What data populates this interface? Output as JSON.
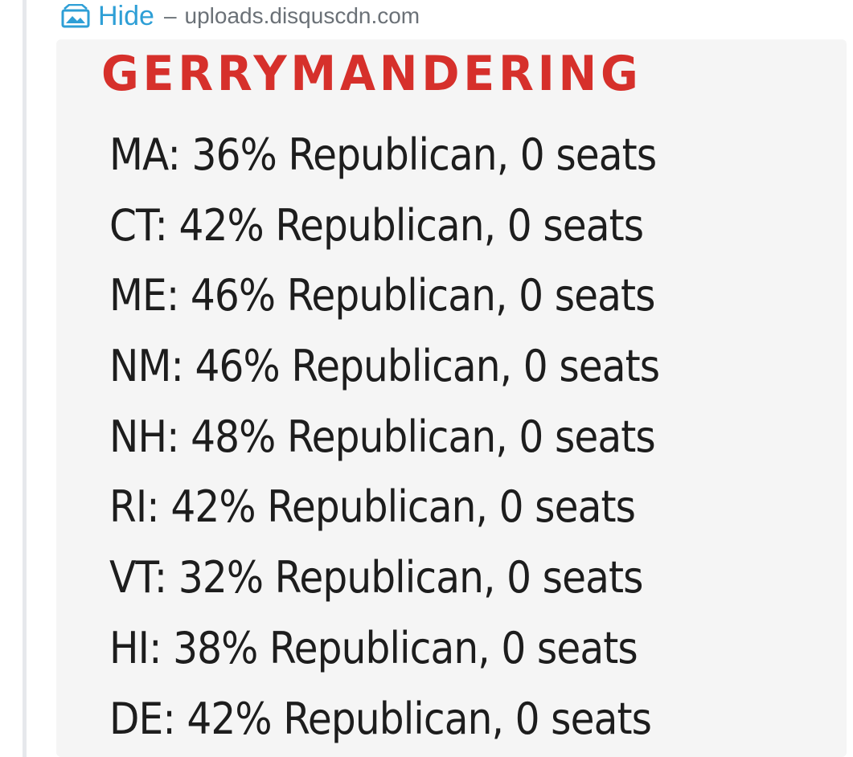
{
  "header": {
    "hide_label": "Hide",
    "separator": "–",
    "source": "uploads.disquscdn.com",
    "hide_icon": "image-icon"
  },
  "image": {
    "title": "GERRYMANDERING",
    "title_color": "#d6302b",
    "rows": [
      "MA: 36% Republican, 0 seats",
      "CT: 42% Republican, 0 seats",
      "ME: 46% Republican, 0 seats",
      "NM: 46% Republican, 0 seats",
      "NH: 48% Republican, 0 seats",
      "RI: 42% Republican, 0 seats",
      "VT: 32% Republican, 0 seats",
      "HI: 38% Republican, 0 seats",
      "DE: 42% Republican, 0 seats"
    ]
  },
  "colors": {
    "link": "#2e9fd6",
    "muted": "#6b7177"
  }
}
